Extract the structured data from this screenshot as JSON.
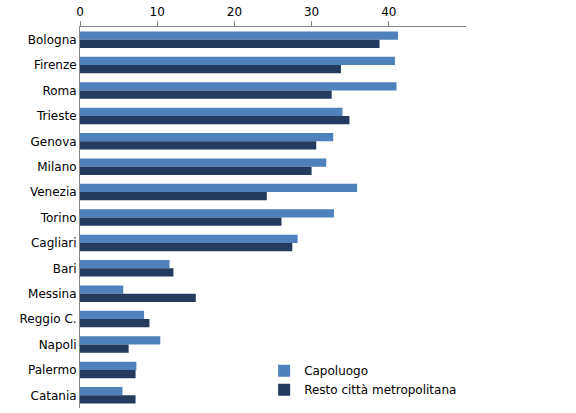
{
  "chart_data": {
    "type": "bar",
    "orientation": "horizontal",
    "categories": [
      "Bologna",
      "Firenze",
      "Roma",
      "Trieste",
      "Genova",
      "Milano",
      "Venezia",
      "Torino",
      "Cagliari",
      "Bari",
      "Messina",
      "Reggio C.",
      "Napoli",
      "Palermo",
      "Catania"
    ],
    "series": [
      {
        "name": "Capoluogo",
        "color": "#4f81bd",
        "values": [
          41.2,
          40.8,
          41.0,
          34.0,
          32.8,
          31.9,
          35.9,
          32.9,
          28.2,
          11.6,
          5.6,
          8.3,
          10.4,
          7.3,
          5.5
        ]
      },
      {
        "name": "Resto città metropolitana",
        "color": "#243a5e",
        "values": [
          38.8,
          33.8,
          32.6,
          34.9,
          30.6,
          30.0,
          24.2,
          26.1,
          27.5,
          12.1,
          15.0,
          9.0,
          6.3,
          7.2,
          7.2
        ]
      }
    ],
    "xlim": [
      0,
      50
    ],
    "xticks": [
      0,
      10,
      20,
      30,
      40
    ],
    "grid": false,
    "legend": "lower right"
  }
}
